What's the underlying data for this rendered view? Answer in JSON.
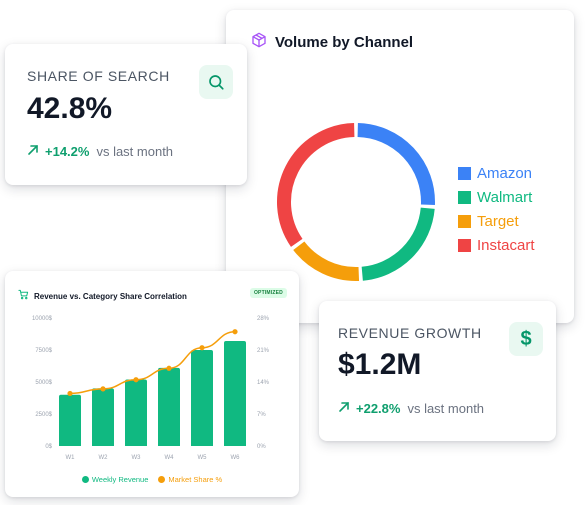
{
  "volume": {
    "title": "Volume by Channel",
    "icon": "box-icon",
    "chart_data": {
      "type": "pie",
      "title": "Volume by Channel",
      "categories": [
        "Amazon",
        "Walmart",
        "Target",
        "Instacart"
      ],
      "values": [
        26,
        23,
        16,
        35
      ],
      "colors": [
        "#3b82f6",
        "#10b981",
        "#f59e0b",
        "#ef4444"
      ],
      "legend": "right"
    }
  },
  "share_of_search": {
    "label": "SHARE OF SEARCH",
    "value": "42.8%",
    "change": "+14.2%",
    "caption": "vs last month",
    "icon": "search-icon"
  },
  "revenue_growth": {
    "label": "REVENUE GROWTH",
    "value": "$1.2M",
    "change": "+22.8%",
    "caption": "vs last month",
    "icon": "dollar-icon"
  },
  "revenue_chart": {
    "title": "Revenue vs. Category Share Correlation",
    "badge": "OPTIMIZED",
    "icon": "cart-icon",
    "chart_data": {
      "type": "bar",
      "categories": [
        "W1",
        "W2",
        "W3",
        "W4",
        "W5",
        "W6"
      ],
      "series": [
        {
          "name": "Weekly Revenue",
          "type": "bar",
          "axis": "left",
          "color": "#10b981",
          "values": [
            4000,
            4500,
            5200,
            6100,
            7500,
            8200
          ]
        },
        {
          "name": "Market Share %",
          "type": "line",
          "axis": "right",
          "color": "#f59e0b",
          "values": [
            11.5,
            12.5,
            14.5,
            17,
            21.5,
            25
          ]
        }
      ],
      "y_left": {
        "ticks": [
          "0$",
          "2500$",
          "5000$",
          "7500$",
          "10000$"
        ],
        "ylim": [
          0,
          10000
        ]
      },
      "y_right": {
        "ticks": [
          "0%",
          "7%",
          "14%",
          "21%",
          "28%"
        ],
        "ylim": [
          0,
          28
        ]
      },
      "grid": false,
      "legend": "bottom"
    }
  }
}
